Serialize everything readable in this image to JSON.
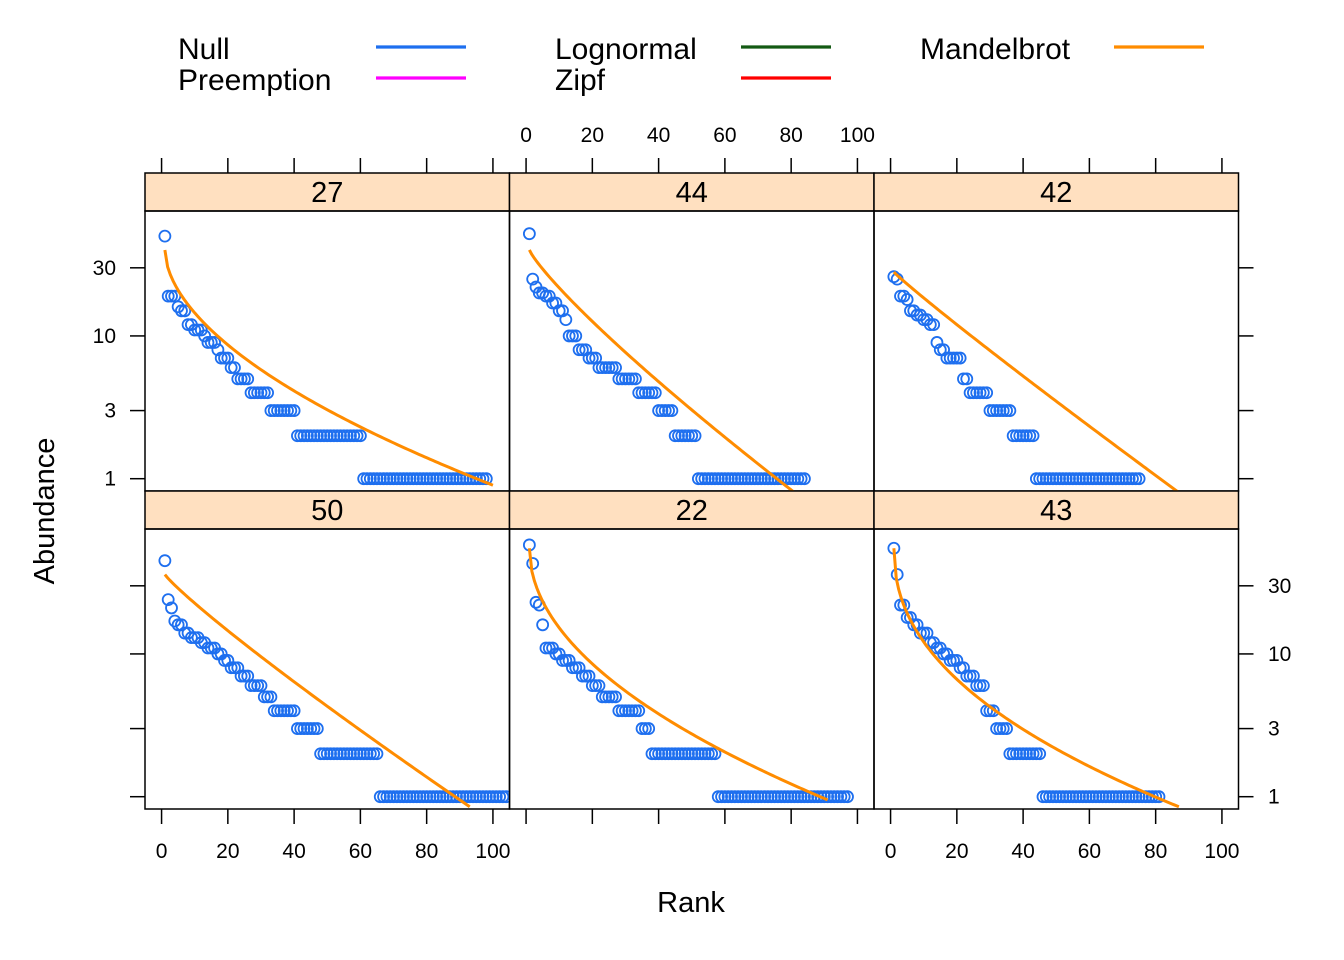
{
  "chart_data": {
    "type": "scatter",
    "xlabel": "Rank",
    "ylabel": "Abundance",
    "x_scale": "linear",
    "y_scale": "log",
    "x_ticks": [
      "0",
      "20",
      "40",
      "60",
      "80",
      "100"
    ],
    "x_range": [
      -5,
      105
    ],
    "y_ticks": [
      {
        "label": "1",
        "value": 1
      },
      {
        "label": "3",
        "value": 3
      },
      {
        "label": "10",
        "value": 10
      },
      {
        "label": "30",
        "value": 30
      }
    ],
    "y_range": [
      0.82,
      75
    ],
    "legend": {
      "position": "top",
      "entries": [
        {
          "name": "Null",
          "color": "#1e6fef"
        },
        {
          "name": "Preemption",
          "color": "#ff00ff"
        },
        {
          "name": "Lognormal",
          "color": "#145a14"
        },
        {
          "name": "Zipf",
          "color": "#ff0000"
        },
        {
          "name": "Mandelbrot",
          "color": "#ff8c00"
        }
      ]
    },
    "point_color": "#1e6fef",
    "fit_color": "#ff8c00",
    "panels": [
      {
        "label": "27",
        "counts": [
          [
            1,
            1
          ],
          [
            1,
            1
          ],
          [
            1,
            1
          ],
          [
            2,
            1
          ],
          [
            1,
            1
          ],
          [
            2,
            1
          ],
          [
            2,
            1
          ],
          [
            1,
            1
          ],
          [
            2,
            1
          ],
          [
            1,
            1
          ],
          [
            1,
            1
          ],
          [
            1,
            1
          ],
          [
            2,
            1
          ],
          [
            1,
            1
          ],
          [
            1,
            1
          ],
          [
            1,
            2
          ],
          [
            1,
            1
          ],
          [
            1,
            1
          ],
          [
            2,
            2
          ],
          [
            5,
            1
          ]
        ],
        "levels": [
          50,
          19,
          19,
          16,
          15,
          12,
          12,
          11,
          11,
          10,
          9,
          9,
          8,
          7,
          7,
          6,
          5,
          4,
          3,
          2,
          1
        ],
        "raw_counts": [
          1,
          2,
          1,
          1,
          2,
          1,
          1,
          2,
          1,
          1,
          1,
          2,
          1,
          2,
          1,
          2,
          4,
          6,
          8,
          20,
          38
        ],
        "fit": {
          "start": 40,
          "end": 0.9,
          "shape": 0.55,
          "n": 100
        }
      },
      {
        "label": "44",
        "levels": [
          52,
          25,
          22,
          20,
          19,
          17,
          15,
          13,
          10,
          8,
          7,
          6,
          5,
          4,
          3,
          2,
          1
        ],
        "raw_counts": [
          1,
          1,
          1,
          2,
          2,
          2,
          2,
          1,
          3,
          3,
          3,
          6,
          6,
          6,
          5,
          7,
          33
        ],
        "fit": {
          "start": 40,
          "end": 0.8,
          "shape": 0.85,
          "n": 81
        }
      },
      {
        "label": "42",
        "levels": [
          26,
          25,
          19,
          18,
          15,
          14,
          13,
          12,
          9,
          8,
          7,
          5,
          4,
          3,
          2,
          1
        ],
        "raw_counts": [
          1,
          1,
          2,
          1,
          2,
          2,
          2,
          2,
          1,
          2,
          5,
          2,
          6,
          7,
          7,
          32
        ],
        "fit": {
          "start": 28,
          "end": 0.8,
          "shape": 0.95,
          "n": 87
        }
      },
      {
        "label": "50",
        "levels": [
          45,
          24,
          21,
          17,
          16,
          14,
          13,
          12,
          11,
          10,
          9,
          8,
          7,
          6,
          5,
          4,
          3,
          2,
          1
        ],
        "raw_counts": [
          1,
          1,
          1,
          1,
          2,
          2,
          3,
          2,
          3,
          2,
          2,
          3,
          3,
          4,
          3,
          7,
          7,
          18,
          39
        ],
        "fit": {
          "start": 36,
          "end": 0.85,
          "shape": 0.9,
          "n": 93
        }
      },
      {
        "label": "22",
        "levels": [
          58,
          43,
          23,
          22,
          16,
          11,
          10,
          9,
          8,
          7,
          6,
          5,
          4,
          3,
          2,
          1
        ],
        "raw_counts": [
          1,
          1,
          1,
          1,
          1,
          3,
          2,
          3,
          3,
          3,
          3,
          5,
          7,
          3,
          20,
          40
        ],
        "fit": {
          "start": 55,
          "end": 0.95,
          "shape": 0.5,
          "n": 91
        }
      },
      {
        "label": "43",
        "levels": [
          55,
          36,
          22,
          18,
          16,
          14,
          12,
          11,
          10,
          9,
          8,
          7,
          6,
          4,
          3,
          2,
          1
        ],
        "raw_counts": [
          1,
          1,
          2,
          2,
          2,
          3,
          2,
          2,
          2,
          3,
          2,
          3,
          3,
          3,
          4,
          10,
          36
        ],
        "fit": {
          "start": 55,
          "end": 0.85,
          "shape": 0.45,
          "n": 87
        }
      }
    ]
  }
}
